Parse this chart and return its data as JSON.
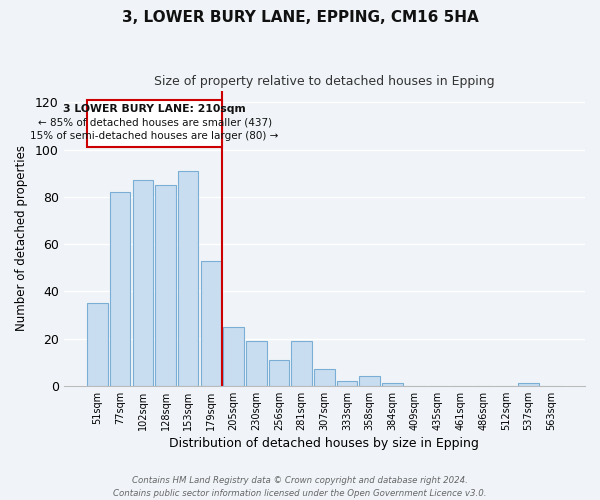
{
  "title": "3, LOWER BURY LANE, EPPING, CM16 5HA",
  "subtitle": "Size of property relative to detached houses in Epping",
  "xlabel": "Distribution of detached houses by size in Epping",
  "ylabel": "Number of detached properties",
  "bar_color": "#c9ddf0",
  "bar_edge_color": "#7aaed4",
  "background_color": "#f0f4f8",
  "grid_color": "#dce8f5",
  "categories": [
    "51sqm",
    "77sqm",
    "102sqm",
    "128sqm",
    "153sqm",
    "179sqm",
    "205sqm",
    "230sqm",
    "256sqm",
    "281sqm",
    "307sqm",
    "333sqm",
    "358sqm",
    "384sqm",
    "409sqm",
    "435sqm",
    "461sqm",
    "486sqm",
    "512sqm",
    "537sqm",
    "563sqm"
  ],
  "values": [
    35,
    82,
    87,
    85,
    91,
    53,
    25,
    19,
    11,
    19,
    7,
    2,
    4,
    1,
    0,
    0,
    0,
    0,
    0,
    1,
    0
  ],
  "ylim": [
    0,
    125
  ],
  "yticks": [
    0,
    20,
    40,
    60,
    80,
    100,
    120
  ],
  "property_line_index": 6,
  "property_line_color": "#cc0000",
  "ann_line1": "3 LOWER BURY LANE: 210sqm",
  "ann_line2": "← 85% of detached houses are smaller (437)",
  "ann_line3": "15% of semi-detached houses are larger (80) →",
  "ann_box_color": "#cc0000",
  "footer_line1": "Contains HM Land Registry data © Crown copyright and database right 2024.",
  "footer_line2": "Contains public sector information licensed under the Open Government Licence v3.0."
}
